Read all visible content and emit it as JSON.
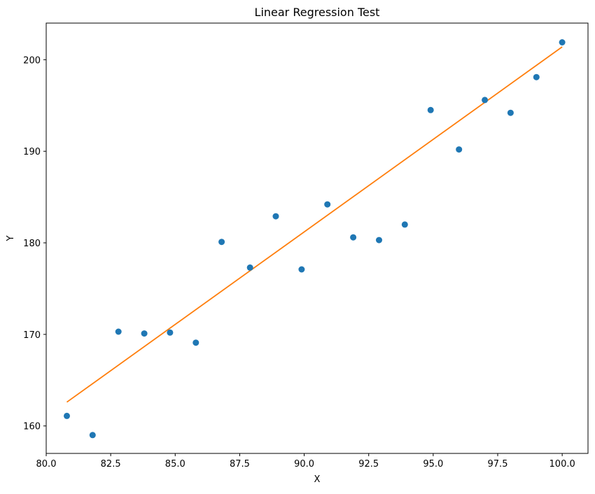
{
  "chart_data": {
    "type": "scatter",
    "title": "Linear Regression Test",
    "xlabel": "X",
    "ylabel": "Y",
    "xlim": [
      80.0,
      101.0
    ],
    "ylim": [
      157.0,
      204.0
    ],
    "xticks": [
      80.0,
      82.5,
      85.0,
      87.5,
      90.0,
      92.5,
      95.0,
      97.5,
      100.0
    ],
    "xtick_labels": [
      "80.0",
      "82.5",
      "85.0",
      "87.5",
      "90.0",
      "92.5",
      "95.0",
      "97.5",
      "100.0"
    ],
    "yticks": [
      160,
      170,
      180,
      190,
      200
    ],
    "ytick_labels": [
      "160",
      "170",
      "180",
      "190",
      "200"
    ],
    "grid": false,
    "series": [
      {
        "kind": "scatter",
        "color": "#1f77b4",
        "points": [
          {
            "x": 80.8,
            "y": 161.1
          },
          {
            "x": 81.8,
            "y": 159.0
          },
          {
            "x": 82.8,
            "y": 170.3
          },
          {
            "x": 83.8,
            "y": 170.1
          },
          {
            "x": 84.8,
            "y": 170.2
          },
          {
            "x": 85.8,
            "y": 169.1
          },
          {
            "x": 86.8,
            "y": 180.1
          },
          {
            "x": 87.9,
            "y": 177.3
          },
          {
            "x": 88.9,
            "y": 182.9
          },
          {
            "x": 89.9,
            "y": 177.1
          },
          {
            "x": 90.9,
            "y": 184.2
          },
          {
            "x": 91.9,
            "y": 180.6
          },
          {
            "x": 92.9,
            "y": 180.3
          },
          {
            "x": 93.9,
            "y": 182.0
          },
          {
            "x": 94.9,
            "y": 194.5
          },
          {
            "x": 96.0,
            "y": 190.2
          },
          {
            "x": 97.0,
            "y": 195.6
          },
          {
            "x": 98.0,
            "y": 194.2
          },
          {
            "x": 99.0,
            "y": 198.1
          },
          {
            "x": 100.0,
            "y": 201.9
          }
        ]
      },
      {
        "kind": "line",
        "color": "#ff7f0e",
        "points": [
          {
            "x": 80.8,
            "y": 162.6
          },
          {
            "x": 100.0,
            "y": 201.4
          }
        ]
      }
    ]
  }
}
